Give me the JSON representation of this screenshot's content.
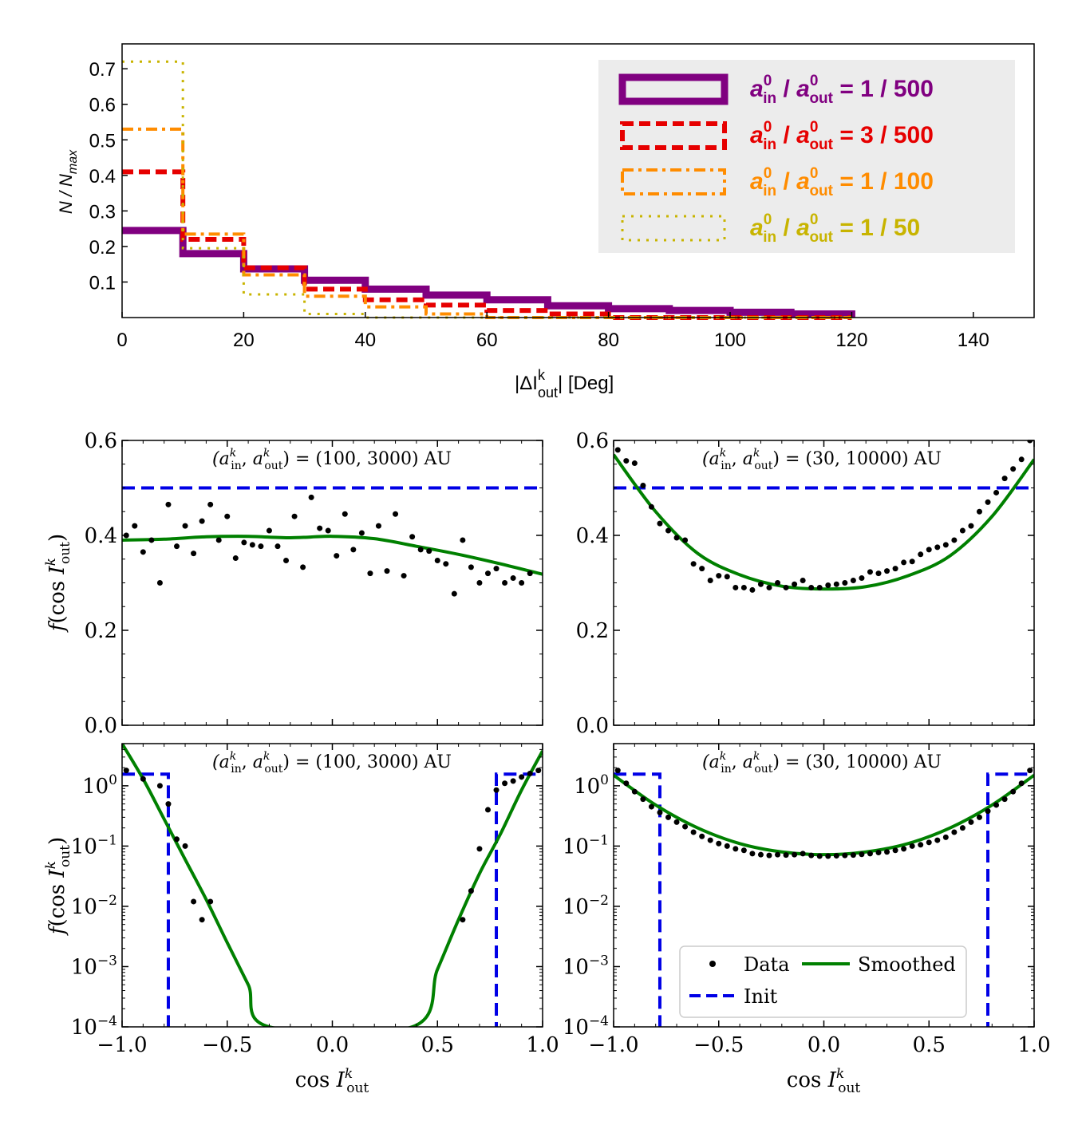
{
  "chart_data": [
    {
      "type": "step",
      "id": "top",
      "xlabel": "|ΔI",
      "xlabel_sup": "k",
      "xlabel_sub": "out",
      "xlabel_tail": "| [Deg]",
      "ylabel": "N / N",
      "ylabel_sub": "max",
      "xlim": [
        0,
        150
      ],
      "ylim": [
        0,
        0.77
      ],
      "xticks": [
        "0",
        "20",
        "40",
        "60",
        "80",
        "100",
        "120",
        "140"
      ],
      "yticks": [
        "0.1",
        "0.2",
        "0.3",
        "0.4",
        "0.5",
        "0.6",
        "0.7"
      ],
      "bin_edges": [
        0,
        10,
        20,
        30,
        40,
        50,
        60,
        70,
        80,
        90,
        100,
        110,
        120
      ],
      "series": [
        {
          "name": "a_in/a_out = 1/500",
          "label_ratio": "= 1 / 500",
          "color": "#800080",
          "style": "solid",
          "values": [
            0.245,
            0.18,
            0.137,
            0.105,
            0.08,
            0.063,
            0.05,
            0.033,
            0.025,
            0.02,
            0.015,
            0.01
          ]
        },
        {
          "name": "a_in/a_out = 3/500",
          "label_ratio": "= 3 / 500",
          "color": "#e60000",
          "style": "dashed",
          "values": [
            0.41,
            0.22,
            0.14,
            0.08,
            0.05,
            0.035,
            0.02,
            0.01,
            0.0,
            0.0,
            0.0,
            0.0
          ]
        },
        {
          "name": "a_in/a_out = 1/100",
          "label_ratio": "= 1 / 100",
          "color": "#ff8c00",
          "style": "dashdot",
          "values": [
            0.53,
            0.235,
            0.12,
            0.06,
            0.03,
            0.01,
            0.0,
            0.0,
            0.0,
            0.0,
            0.0,
            0.0
          ]
        },
        {
          "name": "a_in/a_out = 1/50",
          "label_ratio": "= 1 / 50",
          "color": "#c8b400",
          "style": "dotted",
          "values": [
            0.72,
            0.195,
            0.065,
            0.01,
            0.0,
            0.0,
            0.0,
            0.0,
            0.0,
            0.0,
            0.0,
            0.0
          ]
        }
      ],
      "legend": {
        "placement": "top-right",
        "prefix": "a",
        "sup": "0",
        "sub_in": "in",
        "sub_out": "out"
      }
    },
    {
      "type": "scatter+line",
      "id": "mid-left",
      "title": "(a_in^k, a_out^k) = (100, 3000) AU",
      "title_values": "= (100, 3000) AU",
      "ylabel": "f(cos I_out^k)",
      "xlim": [
        -1,
        1
      ],
      "ylim": [
        0,
        0.6
      ],
      "yscale": "linear",
      "yticks": [
        "0.0",
        "0.2",
        "0.4",
        "0.6"
      ],
      "init_y": 0.5,
      "data_x": [
        -0.98,
        -0.94,
        -0.9,
        -0.86,
        -0.82,
        -0.78,
        -0.74,
        -0.7,
        -0.66,
        -0.62,
        -0.58,
        -0.54,
        -0.5,
        -0.46,
        -0.42,
        -0.38,
        -0.34,
        -0.3,
        -0.26,
        -0.22,
        -0.18,
        -0.14,
        -0.1,
        -0.06,
        -0.02,
        0.02,
        0.06,
        0.1,
        0.14,
        0.18,
        0.22,
        0.26,
        0.3,
        0.34,
        0.38,
        0.42,
        0.46,
        0.5,
        0.54,
        0.58,
        0.62,
        0.66,
        0.7,
        0.74,
        0.78,
        0.82,
        0.86,
        0.9,
        0.94
      ],
      "data_y": [
        0.4,
        0.42,
        0.365,
        0.39,
        0.3,
        0.465,
        0.377,
        0.42,
        0.362,
        0.43,
        0.465,
        0.39,
        0.44,
        0.352,
        0.385,
        0.38,
        0.377,
        0.41,
        0.377,
        0.347,
        0.44,
        0.333,
        0.48,
        0.415,
        0.41,
        0.357,
        0.445,
        0.37,
        0.405,
        0.32,
        0.42,
        0.325,
        0.445,
        0.315,
        0.397,
        0.37,
        0.367,
        0.347,
        0.34,
        0.277,
        0.39,
        0.333,
        0.3,
        0.32,
        0.33,
        0.3,
        0.31,
        0.3,
        0.32
      ],
      "smooth_x": [
        -1.0,
        -0.8,
        -0.6,
        -0.4,
        -0.2,
        0.0,
        0.2,
        0.4,
        0.6,
        0.8,
        1.0
      ],
      "smooth_y": [
        0.39,
        0.392,
        0.397,
        0.398,
        0.395,
        0.398,
        0.393,
        0.377,
        0.36,
        0.34,
        0.318
      ]
    },
    {
      "type": "scatter+line",
      "id": "mid-right",
      "title": "(a_in^k, a_out^k) = (30, 10000) AU",
      "title_values": "= (30, 10000) AU",
      "ylabel": "",
      "xlim": [
        -1,
        1
      ],
      "ylim": [
        0,
        0.6
      ],
      "yscale": "linear",
      "yticks": [
        "0.0",
        "0.2",
        "0.4",
        "0.6"
      ],
      "init_y": 0.5,
      "data_x": [
        -0.98,
        -0.94,
        -0.9,
        -0.86,
        -0.82,
        -0.78,
        -0.74,
        -0.7,
        -0.66,
        -0.62,
        -0.58,
        -0.54,
        -0.5,
        -0.46,
        -0.42,
        -0.38,
        -0.34,
        -0.3,
        -0.26,
        -0.22,
        -0.18,
        -0.14,
        -0.1,
        -0.06,
        -0.02,
        0.02,
        0.06,
        0.1,
        0.14,
        0.18,
        0.22,
        0.26,
        0.3,
        0.34,
        0.38,
        0.42,
        0.46,
        0.5,
        0.54,
        0.58,
        0.62,
        0.66,
        0.7,
        0.74,
        0.78,
        0.82,
        0.86,
        0.9,
        0.94,
        0.98
      ],
      "data_y": [
        0.58,
        0.557,
        0.552,
        0.505,
        0.46,
        0.425,
        0.41,
        0.395,
        0.39,
        0.34,
        0.33,
        0.305,
        0.315,
        0.313,
        0.29,
        0.29,
        0.285,
        0.297,
        0.29,
        0.3,
        0.29,
        0.297,
        0.305,
        0.29,
        0.29,
        0.295,
        0.297,
        0.3,
        0.305,
        0.31,
        0.323,
        0.32,
        0.325,
        0.33,
        0.343,
        0.345,
        0.36,
        0.37,
        0.375,
        0.38,
        0.39,
        0.41,
        0.42,
        0.45,
        0.47,
        0.49,
        0.52,
        0.54,
        0.56,
        0.6
      ],
      "smooth_x": [
        -1.0,
        -0.8,
        -0.6,
        -0.4,
        -0.2,
        0.0,
        0.2,
        0.4,
        0.6,
        0.8,
        1.0
      ],
      "smooth_y": [
        0.57,
        0.45,
        0.362,
        0.317,
        0.293,
        0.287,
        0.292,
        0.315,
        0.357,
        0.44,
        0.56
      ]
    },
    {
      "type": "scatter+line",
      "id": "bottom-left",
      "title": "(a_in^k, a_out^k) = (100, 3000) AU",
      "title_values": "= (100, 3000) AU",
      "xlabel": "cos I_out^k",
      "ylabel": "f(cos I_out^k)",
      "xlim": [
        -1,
        1
      ],
      "ylim_log10": [
        -4,
        0.7
      ],
      "yscale": "log",
      "xticks": [
        "−1.0",
        "−0.5",
        "0.0",
        "0.5",
        "1.0"
      ],
      "yticks_exp": [
        "0",
        "−1",
        "−2",
        "−3",
        "−4"
      ],
      "init_cut": 0.78,
      "init_high": 1.56,
      "data_x": [
        -0.98,
        -0.9,
        -0.82,
        -0.78,
        -0.74,
        -0.7,
        -0.66,
        -0.62,
        -0.58,
        -0.54,
        0.62,
        0.66,
        0.7,
        0.74,
        0.78,
        0.82,
        0.86,
        0.9,
        0.94,
        0.98
      ],
      "data_y": [
        1.8,
        1.3,
        1.0,
        0.5,
        0.13,
        0.1,
        0.012,
        0.006,
        0.012,
        0.0,
        0.006,
        0.018,
        0.09,
        0.4,
        0.85,
        1.1,
        1.2,
        1.4,
        1.6,
        1.8
      ],
      "smooth_x": [
        -1.0,
        -0.9,
        -0.8,
        -0.7,
        -0.6,
        -0.5,
        -0.4,
        -0.3,
        0.38,
        0.5,
        0.6,
        0.7,
        0.8,
        0.9,
        1.0
      ],
      "smooth_y": [
        5.0,
        1.3,
        0.28,
        0.06,
        0.013,
        0.0025,
        0.0005,
        0.0001,
        0.0001,
        0.0009,
        0.006,
        0.035,
        0.16,
        0.85,
        3.8
      ]
    },
    {
      "type": "scatter+line",
      "id": "bottom-right",
      "title": "(a_in^k, a_out^k) = (30, 10000) AU",
      "title_values": "= (30, 10000) AU",
      "xlabel": "cos I_out^k",
      "ylabel": "",
      "xlim": [
        -1,
        1
      ],
      "ylim_log10": [
        -4,
        0.7
      ],
      "yscale": "log",
      "xticks": [
        "−1.0",
        "−0.5",
        "0.0",
        "0.5",
        "1.0"
      ],
      "yticks_exp": [
        "0",
        "−1",
        "−2",
        "−3",
        "−4"
      ],
      "init_cut": 0.78,
      "init_high": 1.56,
      "data_x": [
        -0.98,
        -0.94,
        -0.9,
        -0.86,
        -0.82,
        -0.78,
        -0.74,
        -0.7,
        -0.66,
        -0.62,
        -0.58,
        -0.54,
        -0.5,
        -0.46,
        -0.42,
        -0.38,
        -0.34,
        -0.3,
        -0.26,
        -0.22,
        -0.18,
        -0.14,
        -0.1,
        -0.06,
        -0.02,
        0.02,
        0.06,
        0.1,
        0.14,
        0.18,
        0.22,
        0.26,
        0.3,
        0.34,
        0.38,
        0.42,
        0.46,
        0.5,
        0.54,
        0.58,
        0.62,
        0.66,
        0.7,
        0.74,
        0.78,
        0.82,
        0.86,
        0.9,
        0.94,
        0.98
      ],
      "data_y": [
        1.8,
        1.1,
        0.8,
        0.6,
        0.45,
        0.36,
        0.3,
        0.25,
        0.21,
        0.17,
        0.145,
        0.125,
        0.11,
        0.1,
        0.09,
        0.085,
        0.075,
        0.072,
        0.07,
        0.072,
        0.071,
        0.072,
        0.075,
        0.07,
        0.068,
        0.068,
        0.069,
        0.07,
        0.071,
        0.073,
        0.075,
        0.078,
        0.08,
        0.085,
        0.09,
        0.1,
        0.105,
        0.115,
        0.125,
        0.14,
        0.17,
        0.2,
        0.25,
        0.3,
        0.38,
        0.48,
        0.6,
        0.8,
        1.1,
        1.8
      ],
      "smooth_x": [
        -1.0,
        -0.8,
        -0.6,
        -0.4,
        -0.2,
        0.0,
        0.2,
        0.4,
        0.6,
        0.8,
        1.0
      ],
      "smooth_y": [
        1.5,
        0.48,
        0.2,
        0.11,
        0.08,
        0.072,
        0.08,
        0.11,
        0.2,
        0.48,
        1.5
      ]
    }
  ],
  "legend_bottom": {
    "data_label": "Data",
    "smoothed_label": "Smoothed",
    "init_label": "Init"
  },
  "colors": {
    "data": "#000000",
    "smoothed": "#008000",
    "init": "#0000e6",
    "legend_bg": "#ececec"
  }
}
